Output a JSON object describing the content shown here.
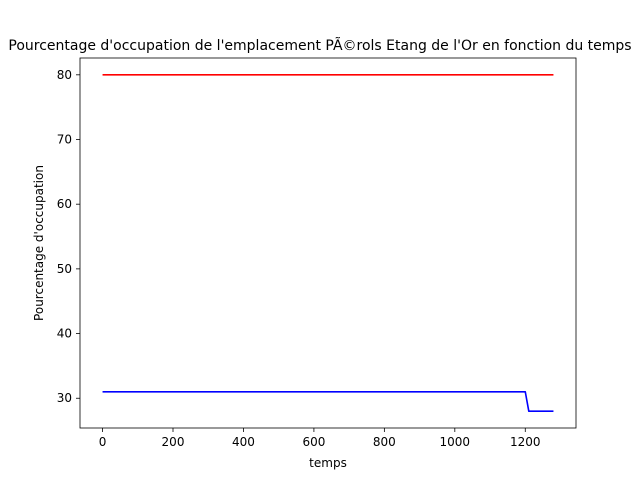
{
  "chart_data": {
    "type": "line",
    "title": "Pourcentage d'occupation de l'emplacement PÃ©rols Etang de l'Or en fonction du temps",
    "xlabel": "temps",
    "ylabel": "Pourcentage d'occupation",
    "xlim": [
      -64,
      1344
    ],
    "ylim": [
      25.4,
      82.6
    ],
    "xticks": [
      0,
      200,
      400,
      600,
      800,
      1000,
      1200
    ],
    "yticks": [
      30,
      40,
      50,
      60,
      70,
      80
    ],
    "grid": false,
    "legend": "none",
    "series": [
      {
        "color": "#ff0000",
        "x": [
          0,
          1280
        ],
        "y": [
          80,
          80
        ]
      },
      {
        "color": "#0000ff",
        "x": [
          0,
          1200,
          1210,
          1280
        ],
        "y": [
          31,
          31,
          28,
          28
        ]
      }
    ]
  }
}
